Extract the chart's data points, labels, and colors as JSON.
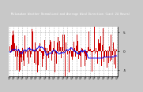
{
  "title": "Milwaukee Weather Normalized and Average Wind Direction (Last 24 Hours)",
  "background_color": "#c8c8c8",
  "plot_bg_color": "#ffffff",
  "title_bg_color": "#1a1a1a",
  "title_color": "#ffffff",
  "bar_color": "#cc0000",
  "line_color": "#0000ee",
  "grid_color": "#999999",
  "ylim": [
    -6.5,
    6.5
  ],
  "yticks": [
    -5,
    0,
    5
  ],
  "ytick_labels": [
    "-5",
    "0",
    "5"
  ],
  "n_points": 144,
  "seed": 42
}
